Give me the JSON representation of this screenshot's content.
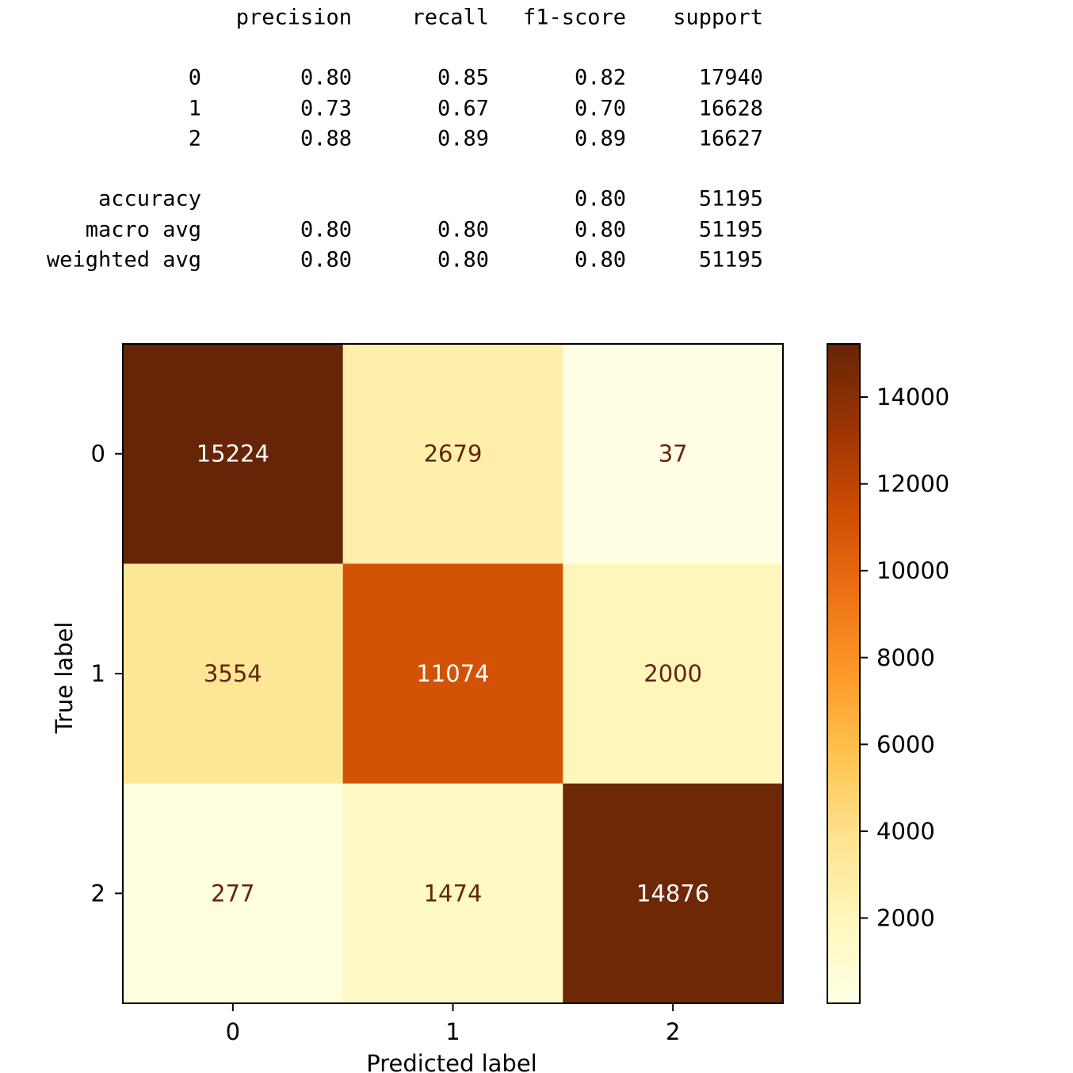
{
  "classification_report": {
    "headers": [
      "precision",
      "recall",
      "f1-score",
      "support"
    ],
    "rows": [
      {
        "label": "0",
        "values": [
          "0.80",
          "0.85",
          "0.82",
          "17940"
        ]
      },
      {
        "label": "1",
        "values": [
          "0.73",
          "0.67",
          "0.70",
          "16628"
        ]
      },
      {
        "label": "2",
        "values": [
          "0.88",
          "0.89",
          "0.89",
          "16627"
        ]
      }
    ],
    "summary_rows": [
      {
        "label": "accuracy",
        "values": [
          "",
          "",
          "0.80",
          "51195"
        ]
      },
      {
        "label": "macro avg",
        "values": [
          "0.80",
          "0.80",
          "0.80",
          "51195"
        ]
      },
      {
        "label": "weighted avg",
        "values": [
          "0.80",
          "0.80",
          "0.80",
          "51195"
        ]
      }
    ]
  },
  "chart_data": {
    "type": "heatmap",
    "title": "",
    "xlabel": "Predicted label",
    "ylabel": "True label",
    "x_categories": [
      "0",
      "1",
      "2"
    ],
    "y_categories": [
      "0",
      "1",
      "2"
    ],
    "matrix": [
      [
        15224,
        2679,
        37
      ],
      [
        3554,
        11074,
        2000
      ],
      [
        277,
        1474,
        14876
      ]
    ],
    "colormap": "YlOrBr",
    "colorbar": {
      "min": 37,
      "max": 15224,
      "ticks": [
        2000,
        4000,
        6000,
        8000,
        10000,
        12000,
        14000
      ],
      "tick_labels": [
        "2000",
        "4000",
        "6000",
        "8000",
        "10000",
        "12000",
        "14000"
      ]
    },
    "colors": {
      "light_text": "#ffffff",
      "dark_text": "#662506"
    }
  }
}
